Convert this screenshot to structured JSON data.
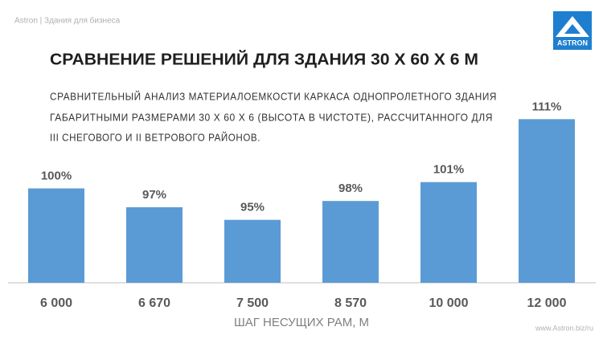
{
  "header": "Astron | Здания для бизнеса",
  "logo": "ASTRON",
  "footer": "www.Astron.biz/ru",
  "chart_data": {
    "type": "bar",
    "title": "СРАВНЕНИЕ РЕШЕНИЙ ДЛЯ ЗДАНИЯ 30 X 60 X 6 М",
    "subtitle": [
      "СРАВНИТЕЛЬНЫЙ АНАЛИЗ МАТЕРИАЛОЕМКОСТИ КАРКАСА ОДНОПРОЛЕТНОГО ЗДАНИЯ",
      "ГАБАРИТНЫМИ РАЗМЕРАМИ 30 Х 60 Х 6 (ВЫСОТА В ЧИСТОТЕ), РАССЧИТАННОГО ДЛЯ",
      "III СНЕГОВОГО И II ВЕТРОВОГО РАЙОНОВ."
    ],
    "x_label": "ШАГ НЕСУЩИХ РАМ, М",
    "categories": [
      "6 000",
      "6 670",
      "7 500",
      "8 570",
      "10 000",
      "12 000"
    ],
    "values": [
      100,
      97,
      95,
      98,
      101,
      111
    ],
    "value_labels": [
      "100%",
      "97%",
      "95%",
      "98%",
      "101%",
      "111%"
    ],
    "color": "#5b9bd5",
    "ylim": [
      85,
      115
    ]
  }
}
